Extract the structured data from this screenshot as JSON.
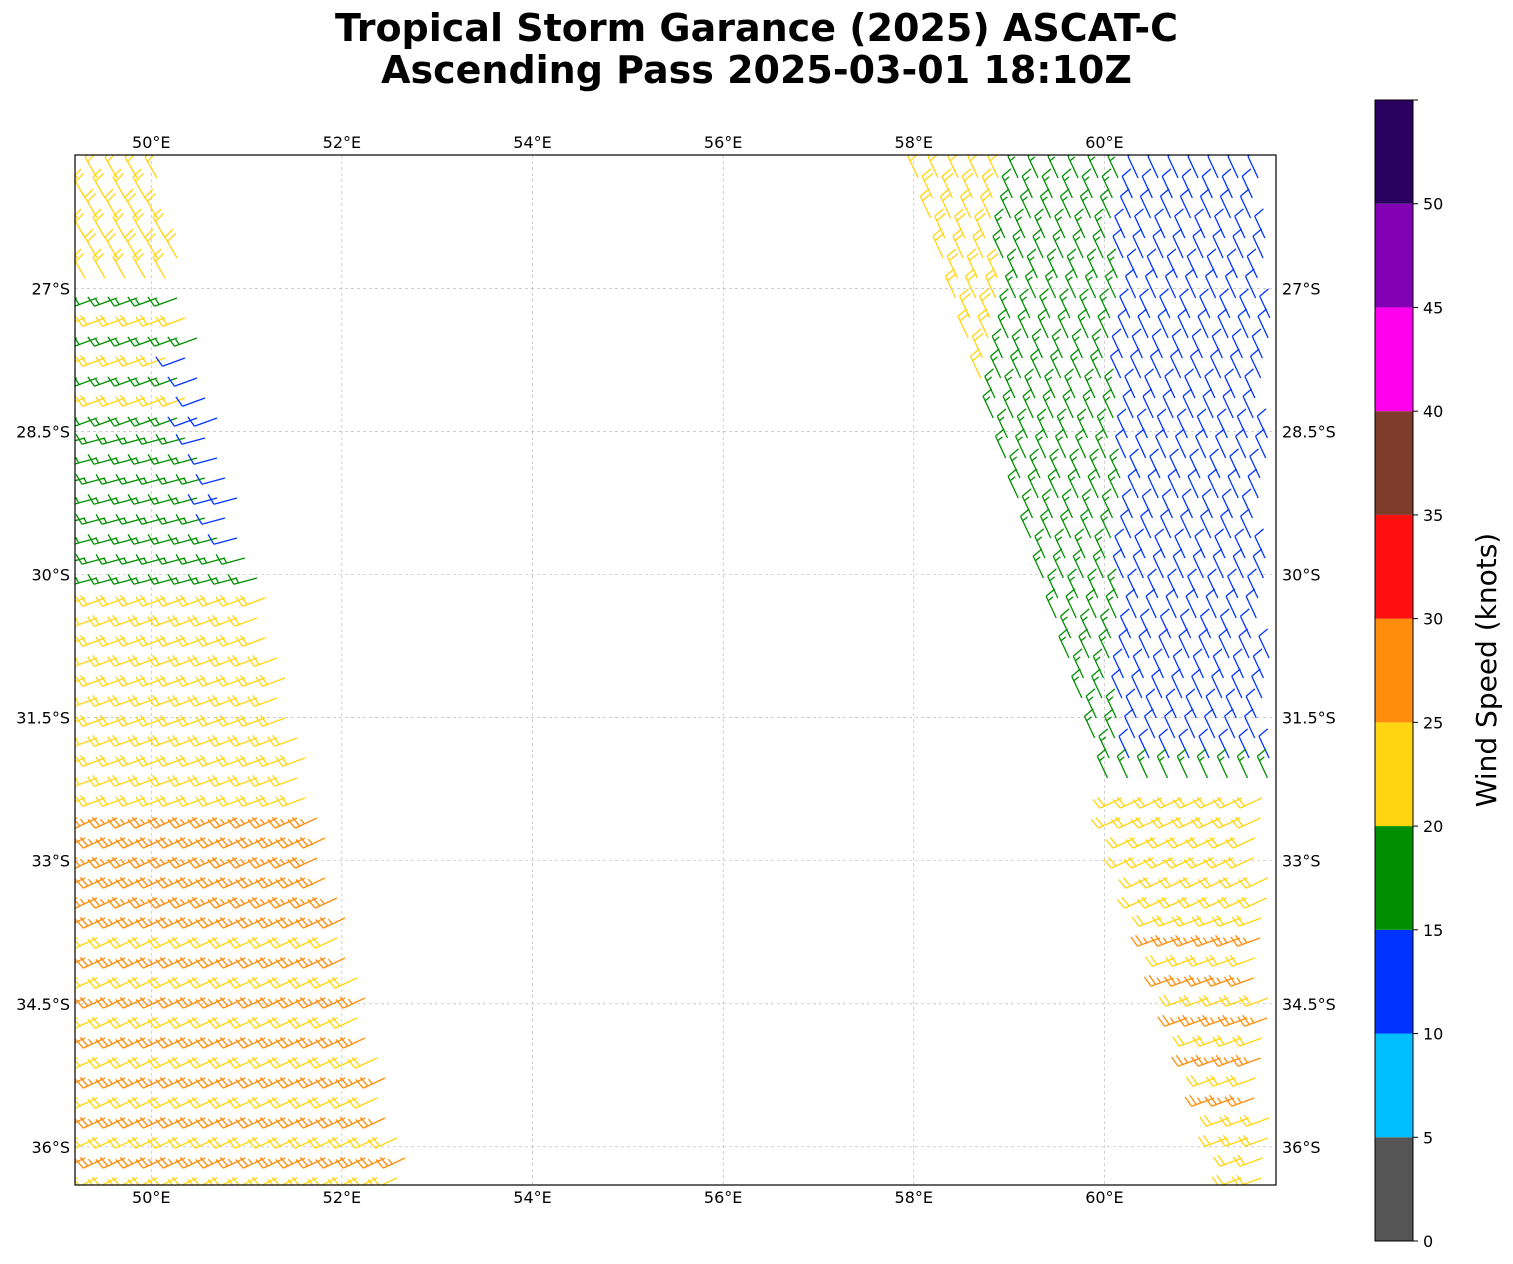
{
  "title_line1": "Tropical Storm Garance (2025) ASCAT-C",
  "title_line2": "Ascending Pass 2025-03-01 18:10Z",
  "map": {
    "lon_range": [
      49.2,
      61.8
    ],
    "lat_range": [
      -36.4,
      -25.6
    ],
    "lon_ticks": [
      50,
      52,
      54,
      56,
      58,
      60
    ],
    "lon_tick_labels": [
      "50°E",
      "52°E",
      "54°E",
      "56°E",
      "58°E",
      "60°E"
    ],
    "lat_ticks": [
      -27,
      -28.5,
      -30,
      -31.5,
      -33,
      -34.5,
      -36
    ],
    "lat_tick_labels": [
      "27°S",
      "28.5°S",
      "30°S",
      "31.5°S",
      "33°S",
      "34.5°S",
      "36°S"
    ],
    "gridlines": true,
    "swaths": [
      {
        "name": "west",
        "segments": [
          {
            "lat": [
              -25.6,
              -26.8
            ],
            "dir_to_deg": 330,
            "speed_kt": 22
          },
          {
            "lat": [
              -26.8,
              -28.4
            ],
            "dir_to_deg": 250,
            "speed_kt": 18
          },
          {
            "lat": [
              -28.4,
              -30.1
            ],
            "dir_to_deg": 255,
            "speed_kt": 17
          },
          {
            "lat": [
              -30.1,
              -32.3
            ],
            "dir_to_deg": 250,
            "speed_kt": 22
          },
          {
            "lat": [
              -32.3,
              -33.5
            ],
            "dir_to_deg": 245,
            "speed_kt": 24
          },
          {
            "lat": [
              -33.5,
              -36.4
            ],
            "dir_to_deg": 245,
            "speed_kt": 23
          }
        ],
        "note_east_edge_blue": true
      },
      {
        "name": "east",
        "segments": [
          {
            "lat": [
              -25.6,
              -32.2
            ],
            "dir_to_deg": 335,
            "speed_kt": 17
          },
          {
            "lat": [
              -32.2,
              -33.3
            ],
            "dir_to_deg": 245,
            "speed_kt": 21
          },
          {
            "lat": [
              -33.3,
              -36.4
            ],
            "dir_to_deg": 250,
            "speed_kt": 24
          }
        ]
      }
    ]
  },
  "colorbar": {
    "label": "Wind Speed (knots)",
    "ticks": [
      "0",
      "5",
      "10",
      "15",
      "20",
      "25",
      "30",
      "35",
      "40",
      "45",
      "50"
    ],
    "bins": [
      {
        "from": 0,
        "to": 5,
        "color": "#555555"
      },
      {
        "from": 5,
        "to": 10,
        "color": "#00bfff"
      },
      {
        "from": 10,
        "to": 15,
        "color": "#0033ff"
      },
      {
        "from": 15,
        "to": 20,
        "color": "#008f00"
      },
      {
        "from": 20,
        "to": 25,
        "color": "#ffd512"
      },
      {
        "from": 25,
        "to": 30,
        "color": "#ff8c0a"
      },
      {
        "from": 30,
        "to": 35,
        "color": "#ff0f0f"
      },
      {
        "from": 35,
        "to": 40,
        "color": "#7f3b2b"
      },
      {
        "from": 40,
        "to": 45,
        "color": "#ff00ee"
      },
      {
        "from": 45,
        "to": 50,
        "color": "#8200b4"
      },
      {
        "from": 50,
        "to": 55,
        "color": "#2a0060"
      }
    ]
  }
}
